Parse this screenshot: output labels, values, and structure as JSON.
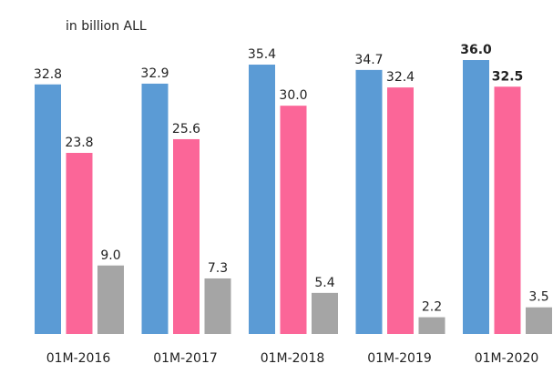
{
  "chart_data": {
    "type": "bar",
    "subtitle": "in billion ALL",
    "categories": [
      "01M-2016",
      "01M-2017",
      "01M-2018",
      "01M-2019",
      "01M-2020"
    ],
    "series": [
      {
        "color": "#5b9bd5",
        "values": [
          32.8,
          32.9,
          35.4,
          34.7,
          36.0
        ],
        "value_labels": [
          "32.8",
          "32.9",
          "35.4",
          "34.7",
          "36.0"
        ]
      },
      {
        "color": "#fb6698",
        "values": [
          23.8,
          25.6,
          30.0,
          32.4,
          32.5
        ],
        "value_labels": [
          "23.8",
          "25.6",
          "30.0",
          "32.4",
          "32.5"
        ]
      },
      {
        "color": "#a5a5a5",
        "values": [
          9.0,
          7.3,
          5.4,
          2.2,
          3.5
        ],
        "value_labels": [
          "9.0",
          "7.3",
          "5.4",
          "2.2",
          "3.5"
        ]
      }
    ],
    "ylim": [
      0,
      36
    ]
  }
}
